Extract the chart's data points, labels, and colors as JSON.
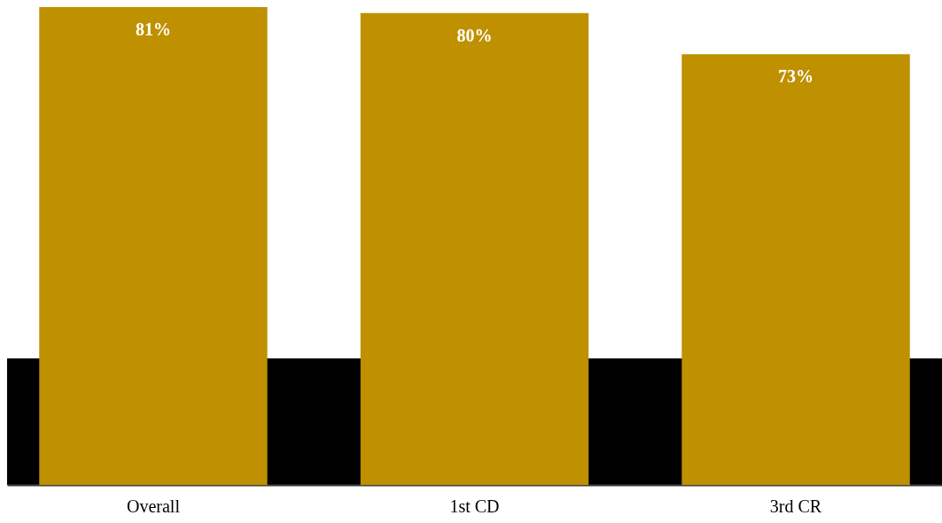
{
  "chart_data": {
    "type": "bar",
    "categories": [
      "Overall",
      "1st CD",
      "3rd CR"
    ],
    "values": [
      81,
      80,
      73
    ],
    "value_labels": [
      "81%",
      "80%",
      "73%"
    ],
    "color": "#bf9000"
  }
}
